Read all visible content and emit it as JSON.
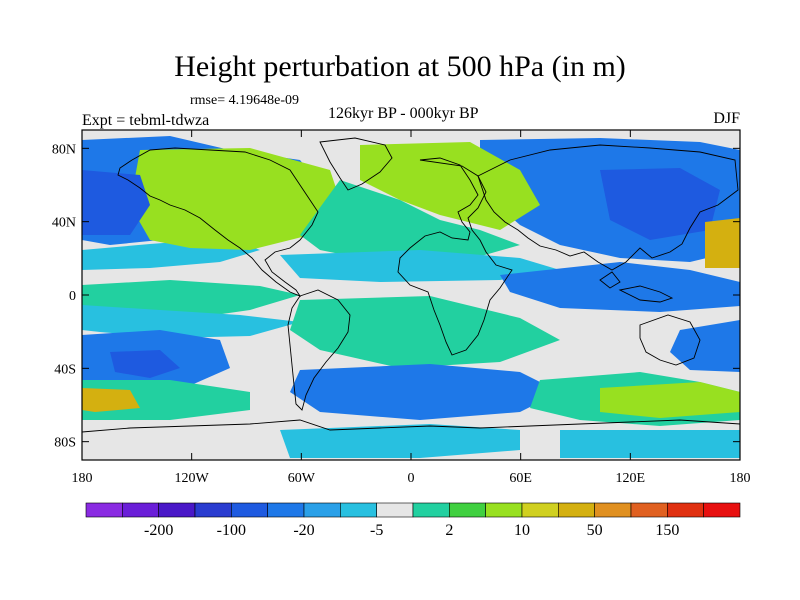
{
  "title": "Height perturbation at 500 hPa (in m)",
  "rmse_label": "rmse= 4.19648e-09",
  "experiment_label": "Expt = tebml-tdwza",
  "period_label": "126kyr BP - 000kyr BP",
  "season_label": "DJF",
  "lat_ticks": [
    {
      "lat": 80,
      "label": "80N"
    },
    {
      "lat": 40,
      "label": "40N"
    },
    {
      "lat": 0,
      "label": "0"
    },
    {
      "lat": -40,
      "label": "40S"
    },
    {
      "lat": -80,
      "label": "80S"
    }
  ],
  "lon_ticks": [
    {
      "lon": -180,
      "label": "180"
    },
    {
      "lon": -120,
      "label": "120W"
    },
    {
      "lon": -60,
      "label": "60W"
    },
    {
      "lon": 0,
      "label": "0"
    },
    {
      "lon": 60,
      "label": "60E"
    },
    {
      "lon": 120,
      "label": "120E"
    },
    {
      "lon": 180,
      "label": "180"
    }
  ],
  "colorbar": {
    "colors": [
      "#8a2be2",
      "#6a1ed8",
      "#4a18c8",
      "#2a3cd0",
      "#1e5ae0",
      "#1e78e8",
      "#2aa0e8",
      "#28c0e0",
      "#e6e6e6",
      "#22d0a0",
      "#40d040",
      "#98e020",
      "#d0d020",
      "#d4b010",
      "#e09020",
      "#e06020",
      "#e03010",
      "#e81010"
    ],
    "labels": [
      {
        "after_box": 1,
        "text": "-200"
      },
      {
        "after_box": 3,
        "text": "-100"
      },
      {
        "after_box": 5,
        "text": "-20"
      },
      {
        "after_box": 7,
        "text": "-5"
      },
      {
        "after_box": 9,
        "text": "2"
      },
      {
        "after_box": 11,
        "text": "10"
      },
      {
        "after_box": 13,
        "text": "50"
      },
      {
        "after_box": 15,
        "text": "150"
      }
    ]
  },
  "field_colors": {
    "neutral": "#e6e6e6",
    "neg_5": "#28c0e0",
    "neg_20": "#1e78e8",
    "neg_100": "#1e5ae0",
    "pos_10": "#22d0a0",
    "pos_50": "#98e020",
    "pos_150": "#d4b010",
    "pos_200": "#e09020"
  }
}
